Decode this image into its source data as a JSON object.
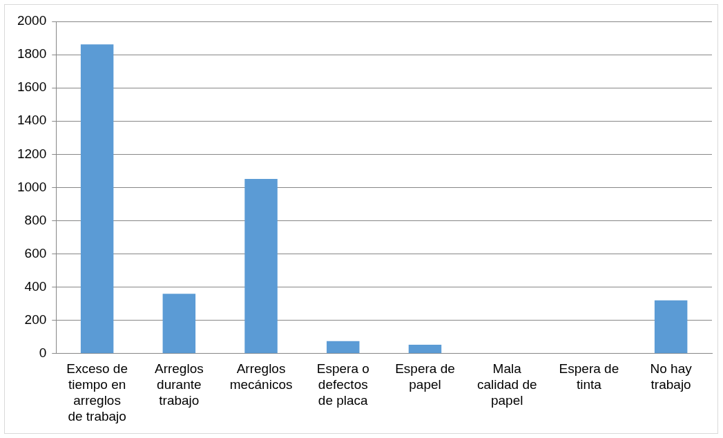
{
  "chart_data": {
    "type": "bar",
    "categories": [
      "Exceso de tiempo en arreglos de trabajo",
      "Arreglos durante trabajo",
      "Arreglos mecánicos",
      "Espera o defectos de placa",
      "Espera de papel",
      "Mala calidad de papel",
      "Espera de tinta",
      "No hay trabajo"
    ],
    "values": [
      1862,
      360,
      1052,
      75,
      53,
      0,
      0,
      320
    ],
    "color": "#5b9bd5",
    "ylim": [
      0,
      2000
    ],
    "yticks": [
      0,
      200,
      400,
      600,
      800,
      1000,
      1200,
      1400,
      1600,
      1800,
      2000
    ],
    "grid": "y",
    "legend": false
  }
}
